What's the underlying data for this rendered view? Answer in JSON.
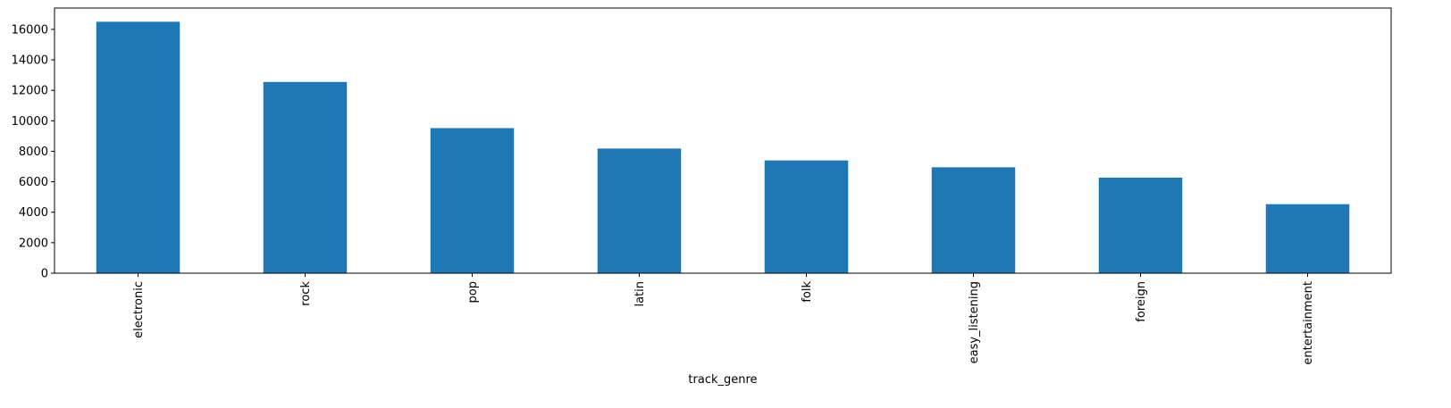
{
  "chart_data": {
    "type": "bar",
    "title": "",
    "xlabel": "track_genre",
    "ylabel": "",
    "categories": [
      "electronic",
      "rock",
      "pop",
      "latin",
      "folk",
      "easy_listening",
      "foreign",
      "entertainment"
    ],
    "values": [
      16500,
      12550,
      9520,
      8180,
      7400,
      6950,
      6270,
      4530
    ],
    "ylim": [
      0,
      17400
    ],
    "yticks": [
      0,
      2000,
      4000,
      6000,
      8000,
      10000,
      12000,
      14000,
      16000
    ],
    "grid": false,
    "legend": "none",
    "bar_color": "#1f77b4"
  }
}
